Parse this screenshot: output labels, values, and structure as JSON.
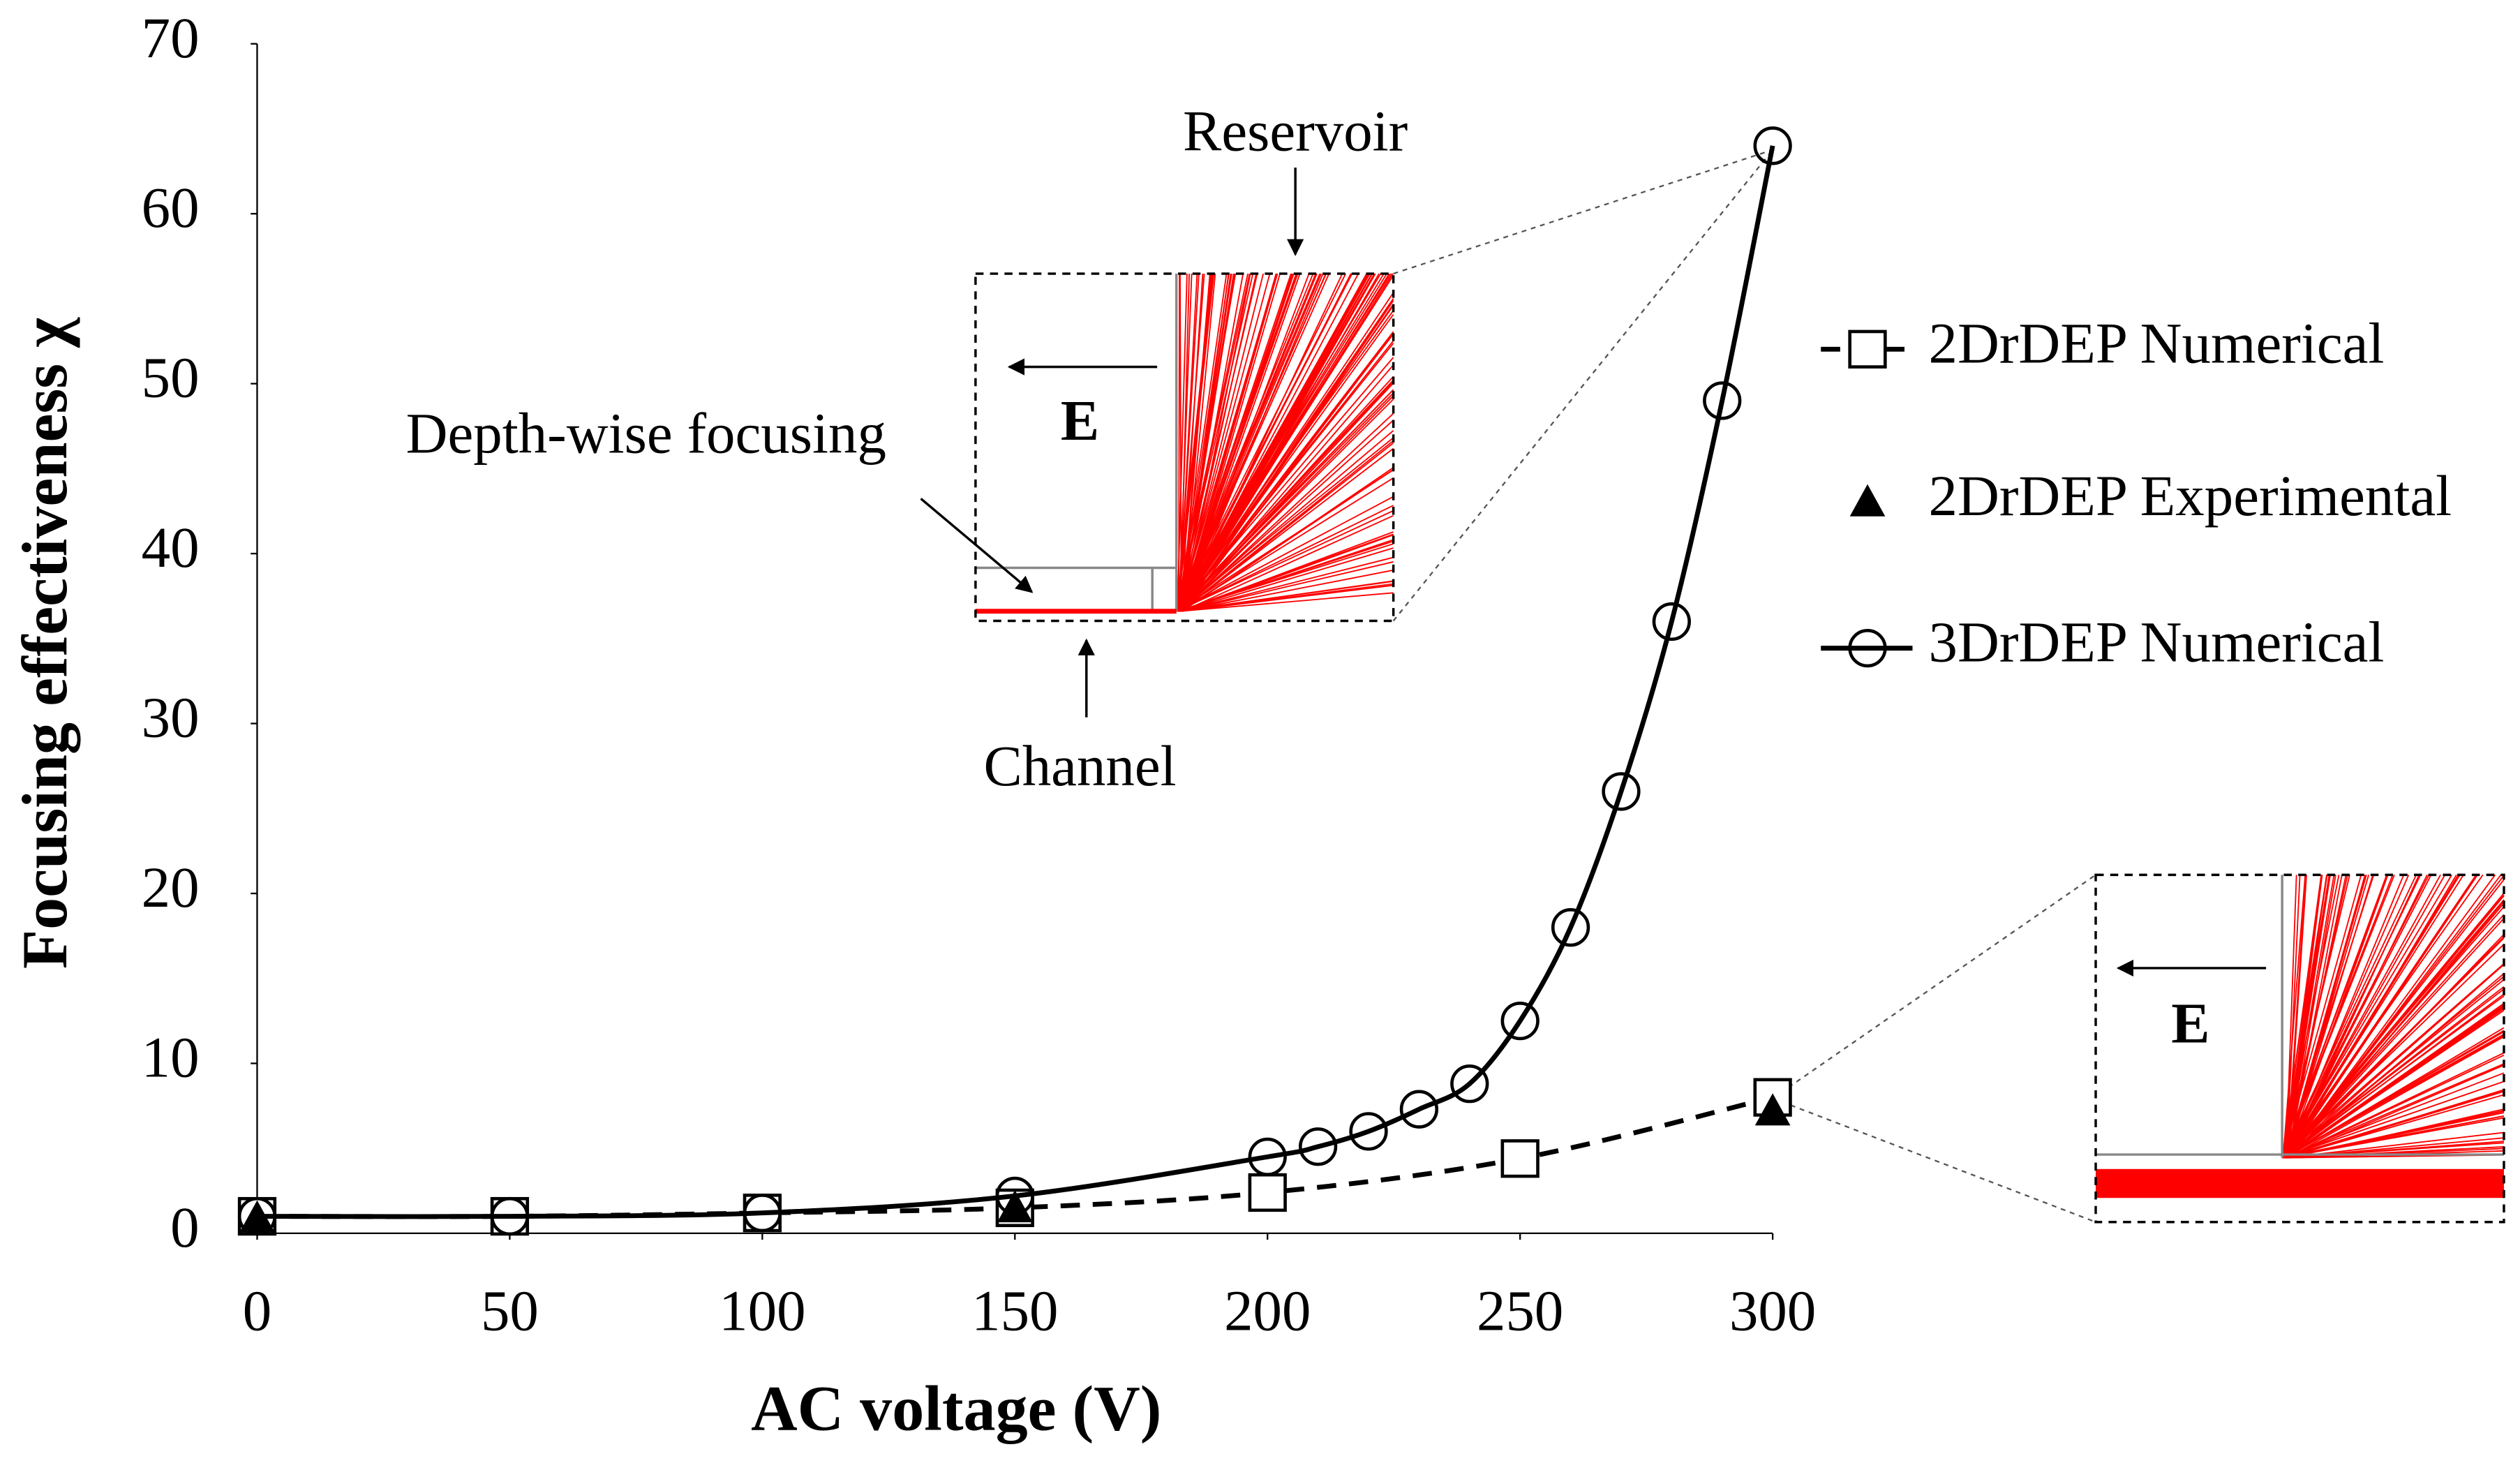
{
  "chart_data": {
    "type": "line",
    "x_label": "AC voltage (V)",
    "y_label": "Focusing effectiveness χ",
    "xlim": [
      0,
      300
    ],
    "xticks": [
      0,
      50,
      100,
      150,
      200,
      250,
      300
    ],
    "ylim": [
      0,
      70
    ],
    "yticks": [
      0,
      10,
      20,
      30,
      40,
      50,
      60,
      70
    ],
    "grid": false,
    "legend": "right",
    "series": [
      {
        "name": "2DrDEP Numerical",
        "color": "#000000",
        "marker": "square",
        "line": "dashed",
        "x": [
          0,
          50,
          100,
          150,
          200,
          250,
          300
        ],
        "values": [
          1,
          1,
          1.2,
          1.5,
          2.4,
          4.4,
          8
        ]
      },
      {
        "name": "2DrDEP Experimental",
        "color": "#000000",
        "marker": "triangle",
        "line": "none",
        "x": [
          0,
          150,
          300
        ],
        "values": [
          0.9,
          1.5,
          7.2
        ]
      },
      {
        "name": "3DrDEP Numerical",
        "color": "#000000",
        "marker": "circle",
        "line": "solid",
        "x": [
          0,
          50,
          100,
          150,
          200,
          210,
          220,
          230,
          240,
          250,
          260,
          270,
          280,
          290,
          300
        ],
        "values": [
          1,
          1,
          1.2,
          2.2,
          4.5,
          5.1,
          6,
          7.3,
          8.8,
          12.5,
          18,
          26,
          36,
          49,
          64
        ]
      }
    ],
    "annotations": {
      "reservoir": "Reservoir",
      "channel": "Channel",
      "depth": "Depth-wise focusing",
      "field": "E",
      "field2": "E"
    }
  }
}
